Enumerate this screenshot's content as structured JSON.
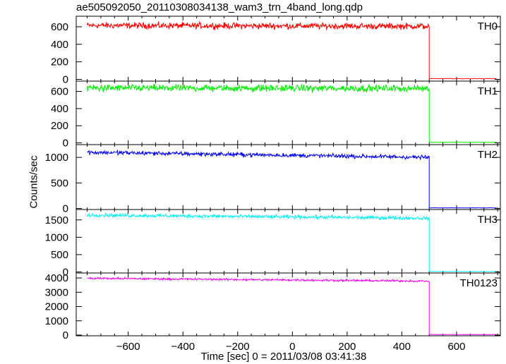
{
  "title": "ae505092050_20110308034138_wam3_trn_4band_long.qdp",
  "ylabel": "Counts/sec",
  "xlabel": "Time [sec] 0 = 2011/03/08 03:41:38",
  "chart_data": {
    "type": "line",
    "title": "ae505092050_20110308034138_wam3_trn_4band_long.qdp",
    "xlabel": "Time [sec] 0 = 2011/03/08 03:41:38",
    "ylabel": "Counts/sec",
    "xlim": [
      -790,
      760
    ],
    "x_ticks": [
      -600,
      -400,
      -200,
      0,
      200,
      400,
      600
    ],
    "x_tick_labels": [
      "−600",
      "−400",
      "−200",
      "0",
      "200",
      "400",
      "600"
    ],
    "drop_time": 500,
    "x_start": -750,
    "x_end": 745,
    "grid": false,
    "panels": [
      {
        "name": "TH0",
        "color": "#ff0000",
        "ylim": [
          -20,
          720
        ],
        "ticks": [
          0,
          200,
          400,
          600
        ],
        "pre_level_start": 615,
        "pre_level_end": 605,
        "noise": 25,
        "post_level": 8
      },
      {
        "name": "TH1",
        "color": "#00ee00",
        "ylim": [
          -20,
          720
        ],
        "ticks": [
          0,
          200,
          400,
          600
        ],
        "pre_level_start": 640,
        "pre_level_end": 635,
        "noise": 28,
        "post_level": 8
      },
      {
        "name": "TH2",
        "color": "#0000ee",
        "ylim": [
          -20,
          1250
        ],
        "ticks": [
          0,
          500,
          1000
        ],
        "pre_level_start": 1100,
        "pre_level_end": 1000,
        "noise": 30,
        "post_level": 12
      },
      {
        "name": "TH3",
        "color": "#00eeee",
        "ylim": [
          -30,
          1800
        ],
        "ticks": [
          0,
          500,
          1000,
          1500
        ],
        "pre_level_start": 1640,
        "pre_level_end": 1550,
        "noise": 35,
        "post_level": 15
      },
      {
        "name": "TH0123",
        "color": "#ee00ee",
        "ylim": [
          -50,
          4350
        ],
        "ticks": [
          0,
          1000,
          2000,
          3000,
          4000
        ],
        "pre_level_start": 3980,
        "pre_level_end": 3780,
        "noise": 50,
        "post_level": 40
      }
    ]
  }
}
